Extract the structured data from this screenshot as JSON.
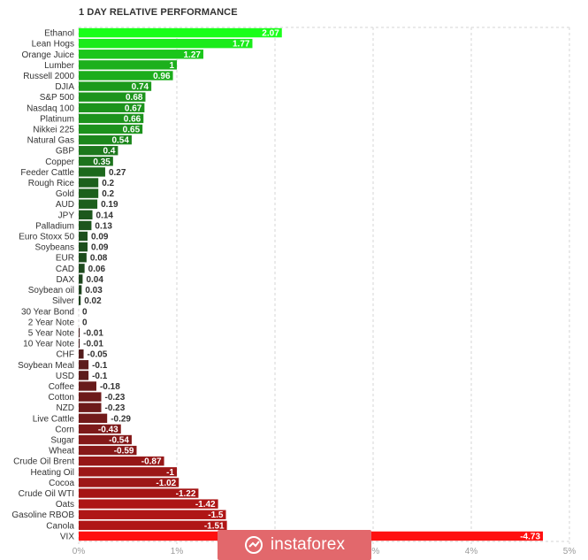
{
  "title": "1 DAY RELATIVE PERFORMANCE",
  "watermark": {
    "text": "instaforex"
  },
  "chart_data": {
    "type": "bar",
    "orientation": "horizontal",
    "title": "1 DAY RELATIVE PERFORMANCE",
    "xlim": [
      0,
      5
    ],
    "xticks": [
      "0%",
      "1%",
      "2%",
      "3%",
      "4%",
      "5%"
    ],
    "grid": true,
    "colors": {
      "positive_max": "#1aff1a",
      "positive_min": "#1e3a1e",
      "negative_min": "#3a1e1e",
      "negative_max": "#ff1010"
    },
    "categories": [
      "Ethanol",
      "Lean Hogs",
      "Orange Juice",
      "Lumber",
      "Russell 2000",
      "DJIA",
      "S&P 500",
      "Nasdaq 100",
      "Platinum",
      "Nikkei 225",
      "Natural Gas",
      "GBP",
      "Copper",
      "Feeder Cattle",
      "Rough Rice",
      "Gold",
      "AUD",
      "JPY",
      "Palladium",
      "Euro Stoxx 50",
      "Soybeans",
      "EUR",
      "CAD",
      "DAX",
      "Soybean oil",
      "Silver",
      "30 Year Bond",
      "2 Year Note",
      "5 Year Note",
      "10 Year Note",
      "CHF",
      "Soybean Meal",
      "USD",
      "Coffee",
      "Cotton",
      "NZD",
      "Live Cattle",
      "Corn",
      "Sugar",
      "Wheat",
      "Crude Oil Brent",
      "Heating Oil",
      "Cocoa",
      "Crude Oil WTI",
      "Oats",
      "Gasoline RBOB",
      "Canola",
      "VIX"
    ],
    "values": [
      2.07,
      1.77,
      1.27,
      1,
      0.96,
      0.74,
      0.68,
      0.67,
      0.66,
      0.65,
      0.54,
      0.4,
      0.35,
      0.27,
      0.2,
      0.2,
      0.19,
      0.14,
      0.13,
      0.09,
      0.09,
      0.08,
      0.06,
      0.04,
      0.03,
      0.02,
      0,
      0,
      -0.01,
      -0.01,
      -0.05,
      -0.1,
      -0.1,
      -0.18,
      -0.23,
      -0.23,
      -0.29,
      -0.43,
      -0.54,
      -0.59,
      -0.87,
      -1,
      -1.02,
      -1.22,
      -1.42,
      -1.5,
      -1.51,
      -4.73
    ],
    "value_labels": [
      "2.07",
      "1.77",
      "1.27",
      "1",
      "0.96",
      "0.74",
      "0.68",
      "0.67",
      "0.66",
      "0.65",
      "0.54",
      "0.4",
      "0.35",
      "0.27",
      "0.2",
      "0.2",
      "0.19",
      "0.14",
      "0.13",
      "0.09",
      "0.09",
      "0.08",
      "0.06",
      "0.04",
      "0.03",
      "0.02",
      "0",
      "0",
      "-0.01",
      "-0.01",
      "-0.05",
      "-0.1",
      "-0.1",
      "-0.18",
      "-0.23",
      "-0.23",
      "-0.29",
      "-0.43",
      "-0.54",
      "-0.59",
      "-0.87",
      "-1",
      "-1.02",
      "-1.22",
      "-1.42",
      "-1.5",
      "-1.51",
      "-4.73"
    ]
  }
}
